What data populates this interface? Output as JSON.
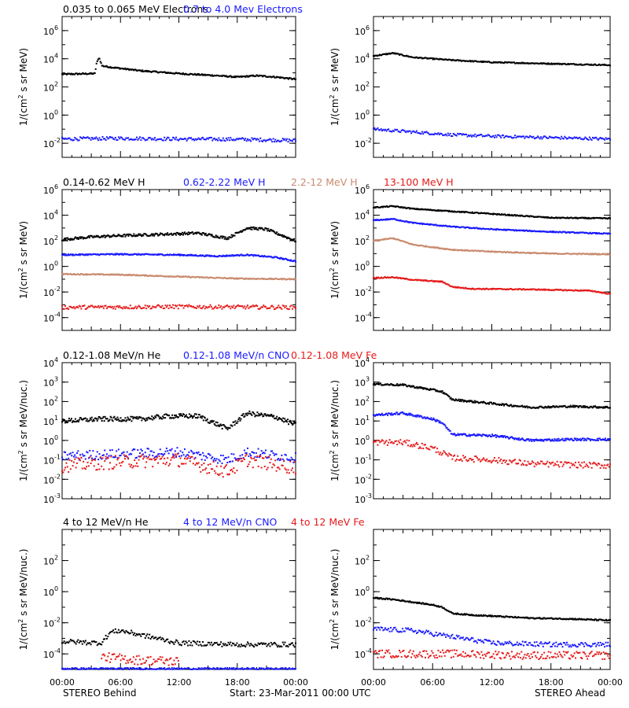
{
  "colors": {
    "black": "#000000",
    "blue": "#1a1aff",
    "tan": "#c98a6e",
    "red": "#e51a1a",
    "axis": "#000000",
    "background": "#ffffff"
  },
  "footer": {
    "left_label": "STEREO Behind",
    "center_label": "Start: 23-Mar-2011 00:00 UTC",
    "right_label": "STEREO Ahead"
  },
  "x_tick_labels": [
    "00:00",
    "06:00",
    "12:00",
    "18:00",
    "00:00"
  ],
  "chart_data": [
    {
      "id": "electrons",
      "type": "scatter",
      "y_scale": "log",
      "ylabel_text": "1/(cm",
      "ylabel_sup": "2",
      "ylabel_rest": " s sr MeV)",
      "legend": [
        {
          "text": "0.035 to 0.065 MeV Electrons",
          "color": "black"
        },
        {
          "text": "0.7 to 4.0 Mev Electrons",
          "color": "blue"
        }
      ],
      "ylim": [
        -3,
        7
      ],
      "ytick_labels": [
        {
          "exp": -2,
          "label": "10",
          "sup": "-2"
        },
        {
          "exp": 0,
          "label": "10",
          "sup": "0"
        },
        {
          "exp": 2,
          "label": "10",
          "sup": "2"
        },
        {
          "exp": 4,
          "label": "10",
          "sup": "4"
        },
        {
          "exp": 6,
          "label": "10",
          "sup": "6"
        }
      ],
      "x_hours": [
        0,
        24
      ],
      "behind": [
        {
          "color": "black",
          "style": "line",
          "noise": 0.05,
          "points": [
            [
              0,
              2.9
            ],
            [
              3.4,
              2.95
            ],
            [
              3.5,
              3.6
            ],
            [
              3.8,
              4.1
            ],
            [
              4.1,
              3.5
            ],
            [
              5,
              3.4
            ],
            [
              8,
              3.15
            ],
            [
              12,
              2.95
            ],
            [
              16,
              2.8
            ],
            [
              18,
              2.7
            ],
            [
              20,
              2.8
            ],
            [
              22,
              2.7
            ],
            [
              24,
              2.55
            ]
          ]
        },
        {
          "color": "blue",
          "style": "dots",
          "noise": 0.12,
          "points": [
            [
              0,
              -1.7
            ],
            [
              6,
              -1.65
            ],
            [
              12,
              -1.7
            ],
            [
              18,
              -1.72
            ],
            [
              24,
              -1.8
            ]
          ]
        }
      ],
      "ahead": [
        {
          "color": "black",
          "style": "line",
          "noise": 0.04,
          "points": [
            [
              0,
              4.2
            ],
            [
              2,
              4.4
            ],
            [
              4,
              4.1
            ],
            [
              8,
              3.9
            ],
            [
              12,
              3.75
            ],
            [
              18,
              3.65
            ],
            [
              24,
              3.55
            ]
          ]
        },
        {
          "color": "blue",
          "style": "dots",
          "noise": 0.1,
          "points": [
            [
              0,
              -1.0
            ],
            [
              4,
              -1.2
            ],
            [
              8,
              -1.4
            ],
            [
              12,
              -1.5
            ],
            [
              18,
              -1.6
            ],
            [
              24,
              -1.7
            ]
          ]
        }
      ]
    },
    {
      "id": "protons",
      "type": "scatter",
      "y_scale": "log",
      "ylabel_text": "1/(cm",
      "ylabel_sup": "2",
      "ylabel_rest": " s sr MeV)",
      "legend": [
        {
          "text": "0.14-0.62 MeV H",
          "color": "black"
        },
        {
          "text": "0.62-2.22 MeV H",
          "color": "blue"
        },
        {
          "text": "2.2-12 MeV H",
          "color": "tan"
        },
        {
          "text": "13-100 MeV H",
          "color": "red"
        }
      ],
      "ylim": [
        -5,
        6
      ],
      "ytick_labels": [
        {
          "exp": -4,
          "label": "10",
          "sup": "-4"
        },
        {
          "exp": -2,
          "label": "10",
          "sup": "-2"
        },
        {
          "exp": 0,
          "label": "10",
          "sup": "0"
        },
        {
          "exp": 2,
          "label": "10",
          "sup": "2"
        },
        {
          "exp": 4,
          "label": "10",
          "sup": "4"
        },
        {
          "exp": 6,
          "label": "10",
          "sup": "6"
        }
      ],
      "x_hours": [
        0,
        24
      ],
      "behind": [
        {
          "color": "black",
          "style": "line",
          "noise": 0.1,
          "points": [
            [
              0,
              2.1
            ],
            [
              3,
              2.3
            ],
            [
              6,
              2.4
            ],
            [
              10,
              2.5
            ],
            [
              14,
              2.6
            ],
            [
              17,
              2.2
            ],
            [
              18,
              2.6
            ],
            [
              19,
              3.0
            ],
            [
              21,
              2.9
            ],
            [
              23,
              2.3
            ],
            [
              24,
              2.0
            ]
          ]
        },
        {
          "color": "blue",
          "style": "line",
          "noise": 0.05,
          "points": [
            [
              0,
              0.9
            ],
            [
              6,
              0.95
            ],
            [
              12,
              0.9
            ],
            [
              16,
              0.8
            ],
            [
              19,
              0.9
            ],
            [
              22,
              0.7
            ],
            [
              24,
              0.4
            ]
          ]
        },
        {
          "color": "tan",
          "style": "line",
          "noise": 0.04,
          "points": [
            [
              0,
              -0.6
            ],
            [
              6,
              -0.65
            ],
            [
              12,
              -0.8
            ],
            [
              18,
              -0.95
            ],
            [
              24,
              -1.0
            ]
          ]
        },
        {
          "color": "red",
          "style": "dots",
          "noise": 0.15,
          "points": [
            [
              0,
              -3.2
            ],
            [
              12,
              -3.15
            ],
            [
              24,
              -3.2
            ]
          ]
        }
      ],
      "ahead": [
        {
          "color": "black",
          "style": "line",
          "noise": 0.04,
          "points": [
            [
              0,
              4.6
            ],
            [
              2,
              4.7
            ],
            [
              4,
              4.5
            ],
            [
              8,
              4.3
            ],
            [
              12,
              4.1
            ],
            [
              18,
              3.8
            ],
            [
              24,
              3.75
            ]
          ]
        },
        {
          "color": "blue",
          "style": "line",
          "noise": 0.04,
          "points": [
            [
              0,
              3.6
            ],
            [
              2,
              3.7
            ],
            [
              4,
              3.4
            ],
            [
              8,
              3.1
            ],
            [
              12,
              2.9
            ],
            [
              18,
              2.7
            ],
            [
              24,
              2.55
            ]
          ]
        },
        {
          "color": "tan",
          "style": "line",
          "noise": 0.04,
          "points": [
            [
              0,
              2.0
            ],
            [
              2,
              2.2
            ],
            [
              4,
              1.7
            ],
            [
              8,
              1.3
            ],
            [
              12,
              1.15
            ],
            [
              18,
              1.0
            ],
            [
              24,
              0.95
            ]
          ]
        },
        {
          "color": "red",
          "style": "line",
          "noise": 0.04,
          "points": [
            [
              0,
              -0.9
            ],
            [
              2,
              -0.85
            ],
            [
              4,
              -1.05
            ],
            [
              7,
              -1.2
            ],
            [
              8,
              -1.6
            ],
            [
              10,
              -1.75
            ],
            [
              16,
              -1.8
            ],
            [
              22,
              -1.9
            ],
            [
              24,
              -2.15
            ]
          ]
        }
      ]
    },
    {
      "id": "low-energy-heavy",
      "type": "scatter",
      "y_scale": "log",
      "ylabel_text": "1/(cm",
      "ylabel_sup": "2",
      "ylabel_rest": " s sr MeV/nuc.)",
      "legend": [
        {
          "text": "0.12-1.08 MeV/n He",
          "color": "black"
        },
        {
          "text": "0.12-1.08 MeV/n CNO",
          "color": "blue"
        },
        {
          "text": "0.12-1.08 MeV Fe",
          "color": "red"
        }
      ],
      "ylim": [
        -3,
        4
      ],
      "ytick_labels": [
        {
          "exp": -3,
          "label": "10",
          "sup": "-3"
        },
        {
          "exp": -2,
          "label": "10",
          "sup": "-2"
        },
        {
          "exp": -1,
          "label": "10",
          "sup": "-1"
        },
        {
          "exp": 0,
          "label": "10",
          "sup": "0"
        },
        {
          "exp": 1,
          "label": "10",
          "sup": "1"
        },
        {
          "exp": 2,
          "label": "10",
          "sup": "2"
        },
        {
          "exp": 3,
          "label": "10",
          "sup": "3"
        },
        {
          "exp": 4,
          "label": "10",
          "sup": "4"
        }
      ],
      "x_hours": [
        0,
        24
      ],
      "behind": [
        {
          "color": "black",
          "style": "line",
          "noise": 0.12,
          "points": [
            [
              0,
              1.0
            ],
            [
              4,
              1.1
            ],
            [
              8,
              1.1
            ],
            [
              11,
              1.25
            ],
            [
              14,
              1.25
            ],
            [
              17,
              0.6
            ],
            [
              18,
              1.0
            ],
            [
              19,
              1.4
            ],
            [
              22,
              1.2
            ],
            [
              24,
              0.8
            ]
          ]
        },
        {
          "color": "blue",
          "style": "dots",
          "noise": 0.25,
          "points": [
            [
              0,
              -0.8
            ],
            [
              6,
              -0.7
            ],
            [
              12,
              -0.6
            ],
            [
              17,
              -1.0
            ],
            [
              19,
              -0.6
            ],
            [
              24,
              -0.9
            ]
          ]
        },
        {
          "color": "red",
          "style": "dots",
          "noise": 0.35,
          "points": [
            [
              0,
              -1.3
            ],
            [
              6,
              -1.1
            ],
            [
              12,
              -1.0
            ],
            [
              17,
              -1.6
            ],
            [
              19,
              -1.0
            ],
            [
              24,
              -1.4
            ]
          ]
        }
      ],
      "ahead": [
        {
          "color": "black",
          "style": "line",
          "noise": 0.05,
          "points": [
            [
              0,
              2.9
            ],
            [
              3,
              2.85
            ],
            [
              6,
              2.6
            ],
            [
              7,
              2.5
            ],
            [
              8,
              2.1
            ],
            [
              12,
              1.9
            ],
            [
              16,
              1.7
            ],
            [
              20,
              1.75
            ],
            [
              24,
              1.7
            ]
          ]
        },
        {
          "color": "blue",
          "style": "line",
          "noise": 0.06,
          "points": [
            [
              0,
              1.3
            ],
            [
              3,
              1.4
            ],
            [
              6,
              1.1
            ],
            [
              7,
              0.9
            ],
            [
              8,
              0.3
            ],
            [
              12,
              0.25
            ],
            [
              16,
              0.0
            ],
            [
              20,
              0.05
            ],
            [
              24,
              0.05
            ]
          ]
        },
        {
          "color": "red",
          "style": "dots",
          "noise": 0.15,
          "points": [
            [
              0,
              -0.1
            ],
            [
              3,
              -0.1
            ],
            [
              6,
              -0.4
            ],
            [
              8,
              -0.9
            ],
            [
              12,
              -1.0
            ],
            [
              16,
              -1.2
            ],
            [
              24,
              -1.3
            ]
          ]
        }
      ]
    },
    {
      "id": "high-energy-heavy",
      "type": "scatter",
      "y_scale": "log",
      "ylabel_text": "1/(cm",
      "ylabel_sup": "2",
      "ylabel_rest": " s sr MeV/nuc.)",
      "legend": [
        {
          "text": "4 to 12 MeV/n He",
          "color": "black"
        },
        {
          "text": "4 to 12 MeV/n CNO",
          "color": "blue"
        },
        {
          "text": "4 to 12 MeV Fe",
          "color": "red"
        }
      ],
      "ylim": [
        -5,
        4
      ],
      "ytick_labels": [
        {
          "exp": -4,
          "label": "10",
          "sup": "-4"
        },
        {
          "exp": -2,
          "label": "10",
          "sup": "-2"
        },
        {
          "exp": 0,
          "label": "10",
          "sup": "0"
        },
        {
          "exp": 2,
          "label": "10",
          "sup": "2"
        }
      ],
      "x_hours": [
        0,
        24
      ],
      "behind": [
        {
          "color": "black",
          "style": "dots",
          "noise": 0.15,
          "points": [
            [
              0,
              -3.2
            ],
            [
              4,
              -3.3
            ],
            [
              5,
              -2.6
            ],
            [
              6,
              -2.5
            ],
            [
              9,
              -2.9
            ],
            [
              12,
              -3.3
            ],
            [
              18,
              -3.4
            ],
            [
              24,
              -3.4
            ]
          ]
        },
        {
          "color": "red",
          "style": "dots",
          "noise": 0.3,
          "points": [
            [
              4,
              -4.2
            ],
            [
              8,
              -4.4
            ],
            [
              12,
              -4.5
            ]
          ]
        },
        {
          "color": "blue",
          "style": "dots",
          "noise": 0.05,
          "points": [
            [
              0,
              -4.95
            ],
            [
              24,
              -4.95
            ]
          ]
        }
      ],
      "ahead": [
        {
          "color": "black",
          "style": "line",
          "noise": 0.04,
          "points": [
            [
              0,
              -0.4
            ],
            [
              2,
              -0.5
            ],
            [
              6,
              -0.85
            ],
            [
              7,
              -1.0
            ],
            [
              8,
              -1.4
            ],
            [
              10,
              -1.5
            ],
            [
              16,
              -1.7
            ],
            [
              20,
              -1.75
            ],
            [
              24,
              -1.85
            ]
          ]
        },
        {
          "color": "blue",
          "style": "dots",
          "noise": 0.15,
          "points": [
            [
              0,
              -2.4
            ],
            [
              4,
              -2.5
            ],
            [
              8,
              -2.9
            ],
            [
              12,
              -3.3
            ],
            [
              18,
              -3.4
            ],
            [
              24,
              -3.4
            ]
          ]
        },
        {
          "color": "red",
          "style": "dots",
          "noise": 0.25,
          "points": [
            [
              0,
              -4.0
            ],
            [
              8,
              -4.0
            ],
            [
              16,
              -4.1
            ],
            [
              24,
              -4.1
            ]
          ]
        }
      ]
    }
  ]
}
